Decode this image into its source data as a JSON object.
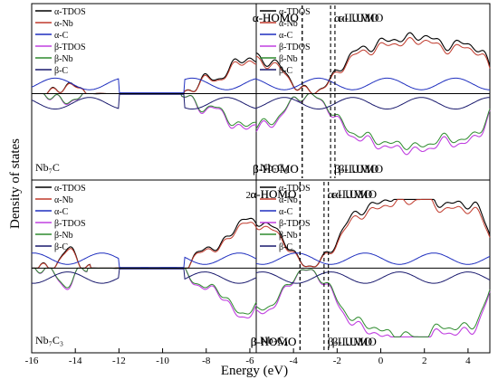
{
  "chart_data": {
    "type": "line",
    "xlabel": "Energy (eV)",
    "ylabel": "Density of states",
    "xlim": [
      -16,
      5
    ],
    "xticks": [
      "-16",
      "-14",
      "-12",
      "-10",
      "-8",
      "-6",
      "-4",
      "-2",
      "0",
      "2",
      "4"
    ],
    "xticks_right": [
      "-4",
      "-2",
      "0",
      "2",
      "4"
    ],
    "legend": [
      "α-TDOS",
      "α-Nb",
      "α-C",
      "β-TDOS",
      "β-Nb",
      "β-C"
    ],
    "colors": {
      "alpha_tdos": "#000000",
      "alpha_nb": "#c0392b",
      "alpha_c": "#1f2fbf",
      "beta_tdos": "#c040e0",
      "beta_nb": "#2e8b2e",
      "beta_c": "#1a1a6e"
    },
    "panels": [
      {
        "system": "Nb₇C",
        "labels": {
          "alpha_homo": "α-HOMO",
          "alpha_lumo": "α-LUMO",
          "beta_homo": "β-HOMO",
          "beta_lumo": "β-LUMO"
        },
        "homo": -3.6,
        "lumo": -2.1,
        "corner_mark": ""
      },
      {
        "system": "Nb₇C₂",
        "labels": {
          "alpha_homo": "α-HOMO",
          "alpha_lumo": "α-LUMO",
          "beta_homo": "β-HOMO",
          "beta_lumo": "β-LUMO"
        },
        "homo": -3.6,
        "lumo": -2.3,
        "corner_mark": ""
      },
      {
        "system": "Nb₇C₃",
        "labels": {
          "alpha_homo": "α-HOMO",
          "alpha_lumo": "α-LUMO",
          "beta_homo": "β-HOMO",
          "beta_lumo": "β-LUMO"
        },
        "homo": -3.7,
        "lumo": -2.4,
        "corner_mark": "2"
      },
      {
        "system": "Nb₇C₄",
        "labels": {
          "alpha_homo": "α-HOMO",
          "alpha_lumo": "α-LUMO",
          "beta_homo": "β-HOMO",
          "beta_lumo": "β-LUMO"
        },
        "homo": -3.7,
        "lumo": -2.6,
        "corner_mark": ""
      }
    ]
  }
}
